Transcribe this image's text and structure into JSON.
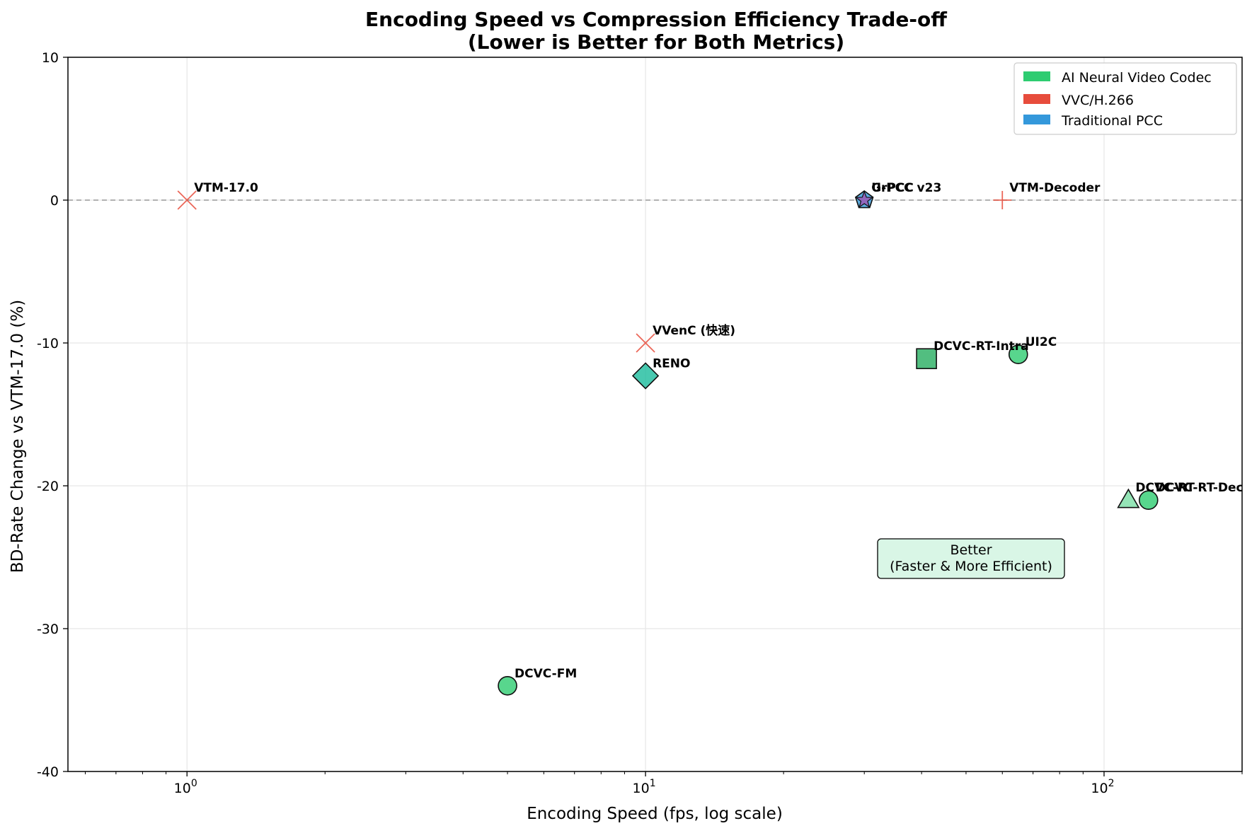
{
  "chart_data": {
    "type": "scatter",
    "title_line1": "Encoding Speed vs Compression Efficiency Trade-off",
    "title_line2": "(Lower is Better for Both Metrics)",
    "xlabel": "Encoding Speed (fps, log scale)",
    "ylabel": "BD-Rate Change vs VTM-17.0 (%)",
    "xscale": "log",
    "xlim": [
      0.55,
      200
    ],
    "ylim": [
      -40,
      10
    ],
    "xticks": [
      {
        "value": 1,
        "base": "10",
        "exp": "0"
      },
      {
        "value": 10,
        "base": "10",
        "exp": "1"
      },
      {
        "value": 100,
        "base": "10",
        "exp": "2"
      }
    ],
    "yticks": [
      {
        "value": 10,
        "label": "10"
      },
      {
        "value": 0,
        "label": "0"
      },
      {
        "value": -10,
        "label": "-10"
      },
      {
        "value": -20,
        "label": "-20"
      },
      {
        "value": -30,
        "label": "-30"
      },
      {
        "value": -40,
        "label": "-40"
      }
    ],
    "grid": true,
    "reference_line_y": 0,
    "legend_position": "top-right",
    "legend": [
      {
        "label": "AI Neural Video Codec",
        "color": "#2ecc71"
      },
      {
        "label": "VVC/H.266",
        "color": "#e74c3c"
      },
      {
        "label": "Traditional PCC",
        "color": "#3498db"
      }
    ],
    "points": [
      {
        "label": "VTM-17.0",
        "x": 1,
        "y": 0,
        "marker": "x",
        "color": "#e74c3c"
      },
      {
        "label": "VVenC (快速)",
        "x": 10,
        "y": -10,
        "marker": "x",
        "color": "#e74c3c"
      },
      {
        "label": "VTM-Decoder",
        "x": 60,
        "y": 0,
        "marker": "plus",
        "color": "#e74c3c"
      },
      {
        "label": "RENO",
        "x": 10,
        "y": -12.3,
        "marker": "diamond",
        "color": "#1abc9c"
      },
      {
        "label": "G-PCC v23",
        "x": 30,
        "y": 0,
        "marker": "pentagon",
        "color": "#3498db"
      },
      {
        "label": "UrPCC",
        "x": 30,
        "y": 0,
        "marker": "star",
        "color": "#9b59b6"
      },
      {
        "label": "DCVC-RT-Intra",
        "x": 41,
        "y": -11.1,
        "marker": "square",
        "color": "#27ae60"
      },
      {
        "label": "UI2C",
        "x": 65,
        "y": -10.8,
        "marker": "circle",
        "color": "#2ecc71"
      },
      {
        "label": "DCVC-RT",
        "x": 113,
        "y": -21,
        "marker": "triangle",
        "color": "#82e0aa"
      },
      {
        "label": "DCVC-RT-Dec",
        "x": 125,
        "y": -21,
        "marker": "circle",
        "color": "#2ecc71"
      },
      {
        "label": "DCVC-FM",
        "x": 5,
        "y": -34,
        "marker": "circle",
        "color": "#2ecc71"
      }
    ],
    "annotation": {
      "line1": "Better",
      "line2": "(Faster & More Efficient)"
    }
  }
}
